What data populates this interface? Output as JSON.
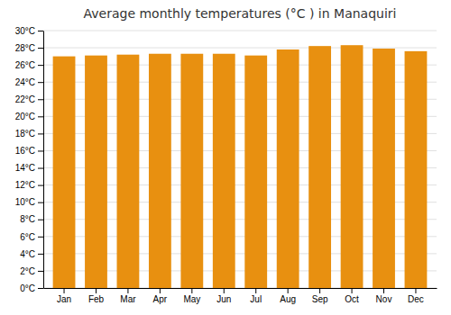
{
  "chart_data": {
    "type": "bar",
    "title": "Average monthly temperatures (°C ) in Manaquiri",
    "categories": [
      "Jan",
      "Feb",
      "Mar",
      "Apr",
      "May",
      "Jun",
      "Jul",
      "Aug",
      "Sep",
      "Oct",
      "Nov",
      "Dec"
    ],
    "values": [
      27.0,
      27.1,
      27.2,
      27.3,
      27.3,
      27.3,
      27.1,
      27.8,
      28.2,
      28.3,
      27.9,
      27.6
    ],
    "color": "#E89010",
    "ylim": [
      0,
      30
    ],
    "yticks": [
      {
        "value": 0,
        "label": "0°C"
      },
      {
        "value": 2,
        "label": "2°C"
      },
      {
        "value": 4,
        "label": "4°C"
      },
      {
        "value": 6,
        "label": "6°C"
      },
      {
        "value": 8,
        "label": "8°C"
      },
      {
        "value": 10,
        "label": "10°C"
      },
      {
        "value": 12,
        "label": "12°C"
      },
      {
        "value": 14,
        "label": "14°C"
      },
      {
        "value": 16,
        "label": "16°C"
      },
      {
        "value": 18,
        "label": "18°C"
      },
      {
        "value": 20,
        "label": "20°C"
      },
      {
        "value": 22,
        "label": "22°C"
      },
      {
        "value": 24,
        "label": "24°C"
      },
      {
        "value": 26,
        "label": "26°C"
      },
      {
        "value": 28,
        "label": "28°C"
      },
      {
        "value": 30,
        "label": "30°C"
      }
    ],
    "grid": true
  }
}
